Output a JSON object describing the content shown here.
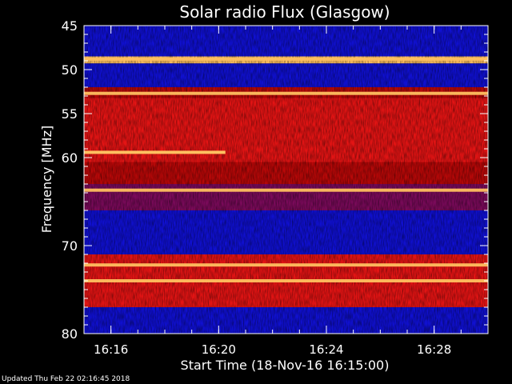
{
  "chart_data": {
    "type": "heatmap",
    "title": "Solar radio Flux (Glasgow)",
    "xlabel": "Start Time (18-Nov-16 16:15:00)",
    "ylabel": "Frequency [MHz]",
    "x_unit": "minutes",
    "xlim": [
      "16:15:00",
      "16:30:00"
    ],
    "ylim": [
      45,
      80
    ],
    "y_inverted": true,
    "x_ticks": [
      "16:16",
      "16:20",
      "16:24",
      "16:28"
    ],
    "y_ticks": [
      45,
      50,
      55,
      60,
      70,
      80
    ],
    "frequency_regions": [
      {
        "from": 45.0,
        "to": 48.5,
        "level": "low"
      },
      {
        "from": 48.5,
        "to": 49.3,
        "level": "bright"
      },
      {
        "from": 49.3,
        "to": 52.0,
        "level": "low"
      },
      {
        "from": 52.0,
        "to": 53.2,
        "level": "medium"
      },
      {
        "from": 53.2,
        "to": 60.5,
        "level": "high"
      },
      {
        "from": 60.5,
        "to": 63.0,
        "level": "medium"
      },
      {
        "from": 63.0,
        "to": 66.0,
        "level": "medium-low"
      },
      {
        "from": 66.0,
        "to": 71.0,
        "level": "low"
      },
      {
        "from": 71.0,
        "to": 77.0,
        "level": "high"
      },
      {
        "from": 77.0,
        "to": 80.0,
        "level": "low"
      }
    ],
    "bright_lines_mhz": [
      48.8,
      52.7,
      63.7,
      72.2,
      74.0
    ],
    "short_emission": {
      "freq_mhz": 59.4,
      "from": "16:15:00",
      "to": "16:20:15"
    },
    "colors": {
      "low": "#1010d0",
      "medium": "#b80808",
      "high": "#e41414",
      "bright": "#ffc060",
      "axis": "#ffffff"
    }
  },
  "footer": {
    "updated": "Updated Thu Feb 22 02:16:45 2018"
  }
}
